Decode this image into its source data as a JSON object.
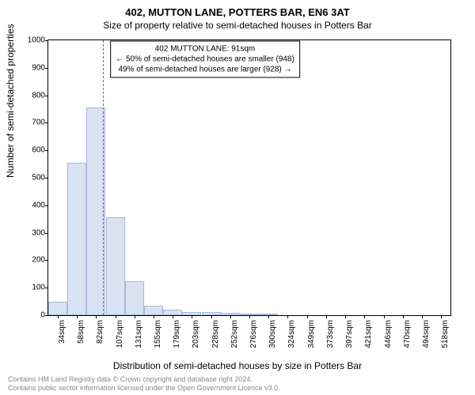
{
  "title": "402, MUTTON LANE, POTTERS BAR, EN6 3AT",
  "subtitle": "Size of property relative to semi-detached houses in Potters Bar",
  "ylabel": "Number of semi-detached properties",
  "xlabel": "Distribution of semi-detached houses by size in Potters Bar",
  "footer1": "Contains HM Land Registry data © Crown copyright and database right 2024.",
  "footer2": "Contains public sector information licensed under the Open Government Licence v3.0.",
  "chart": {
    "type": "histogram",
    "ylim": [
      0,
      1000
    ],
    "yticks": [
      0,
      100,
      200,
      300,
      400,
      500,
      600,
      700,
      800,
      900,
      1000
    ],
    "xlim_sqm": [
      22,
      530
    ],
    "xticks_sqm": [
      34,
      58,
      82,
      107,
      131,
      155,
      179,
      203,
      228,
      252,
      276,
      300,
      324,
      349,
      373,
      397,
      421,
      446,
      470,
      494,
      518
    ],
    "bar_color": "#d9e2f3",
    "bar_border": "#a8b8d8",
    "background": "#ffffff",
    "axis_color": "#000000",
    "bin_width_sqm": 24,
    "bars": [
      {
        "x_sqm": 34,
        "count": 50
      },
      {
        "x_sqm": 58,
        "count": 555
      },
      {
        "x_sqm": 82,
        "count": 755
      },
      {
        "x_sqm": 107,
        "count": 355
      },
      {
        "x_sqm": 131,
        "count": 125
      },
      {
        "x_sqm": 155,
        "count": 35
      },
      {
        "x_sqm": 179,
        "count": 20
      },
      {
        "x_sqm": 203,
        "count": 12
      },
      {
        "x_sqm": 228,
        "count": 12
      },
      {
        "x_sqm": 252,
        "count": 8
      },
      {
        "x_sqm": 276,
        "count": 4
      },
      {
        "x_sqm": 300,
        "count": 5
      }
    ],
    "refline_sqm": 91,
    "refline_color": "#cc4444",
    "annotation": {
      "line1": "402 MUTTON LANE: 91sqm",
      "line2": "← 50% of semi-detached houses are smaller (948)",
      "line3": "49% of semi-detached houses are larger (928) →",
      "x_sqm": 220,
      "y_count": 930
    },
    "title_fontsize": 13,
    "subtitle_fontsize": 12,
    "label_fontsize": 12,
    "tick_fontsize": 10,
    "annotation_fontsize": 10,
    "footer_fontsize": 9,
    "footer_color": "#888888"
  }
}
